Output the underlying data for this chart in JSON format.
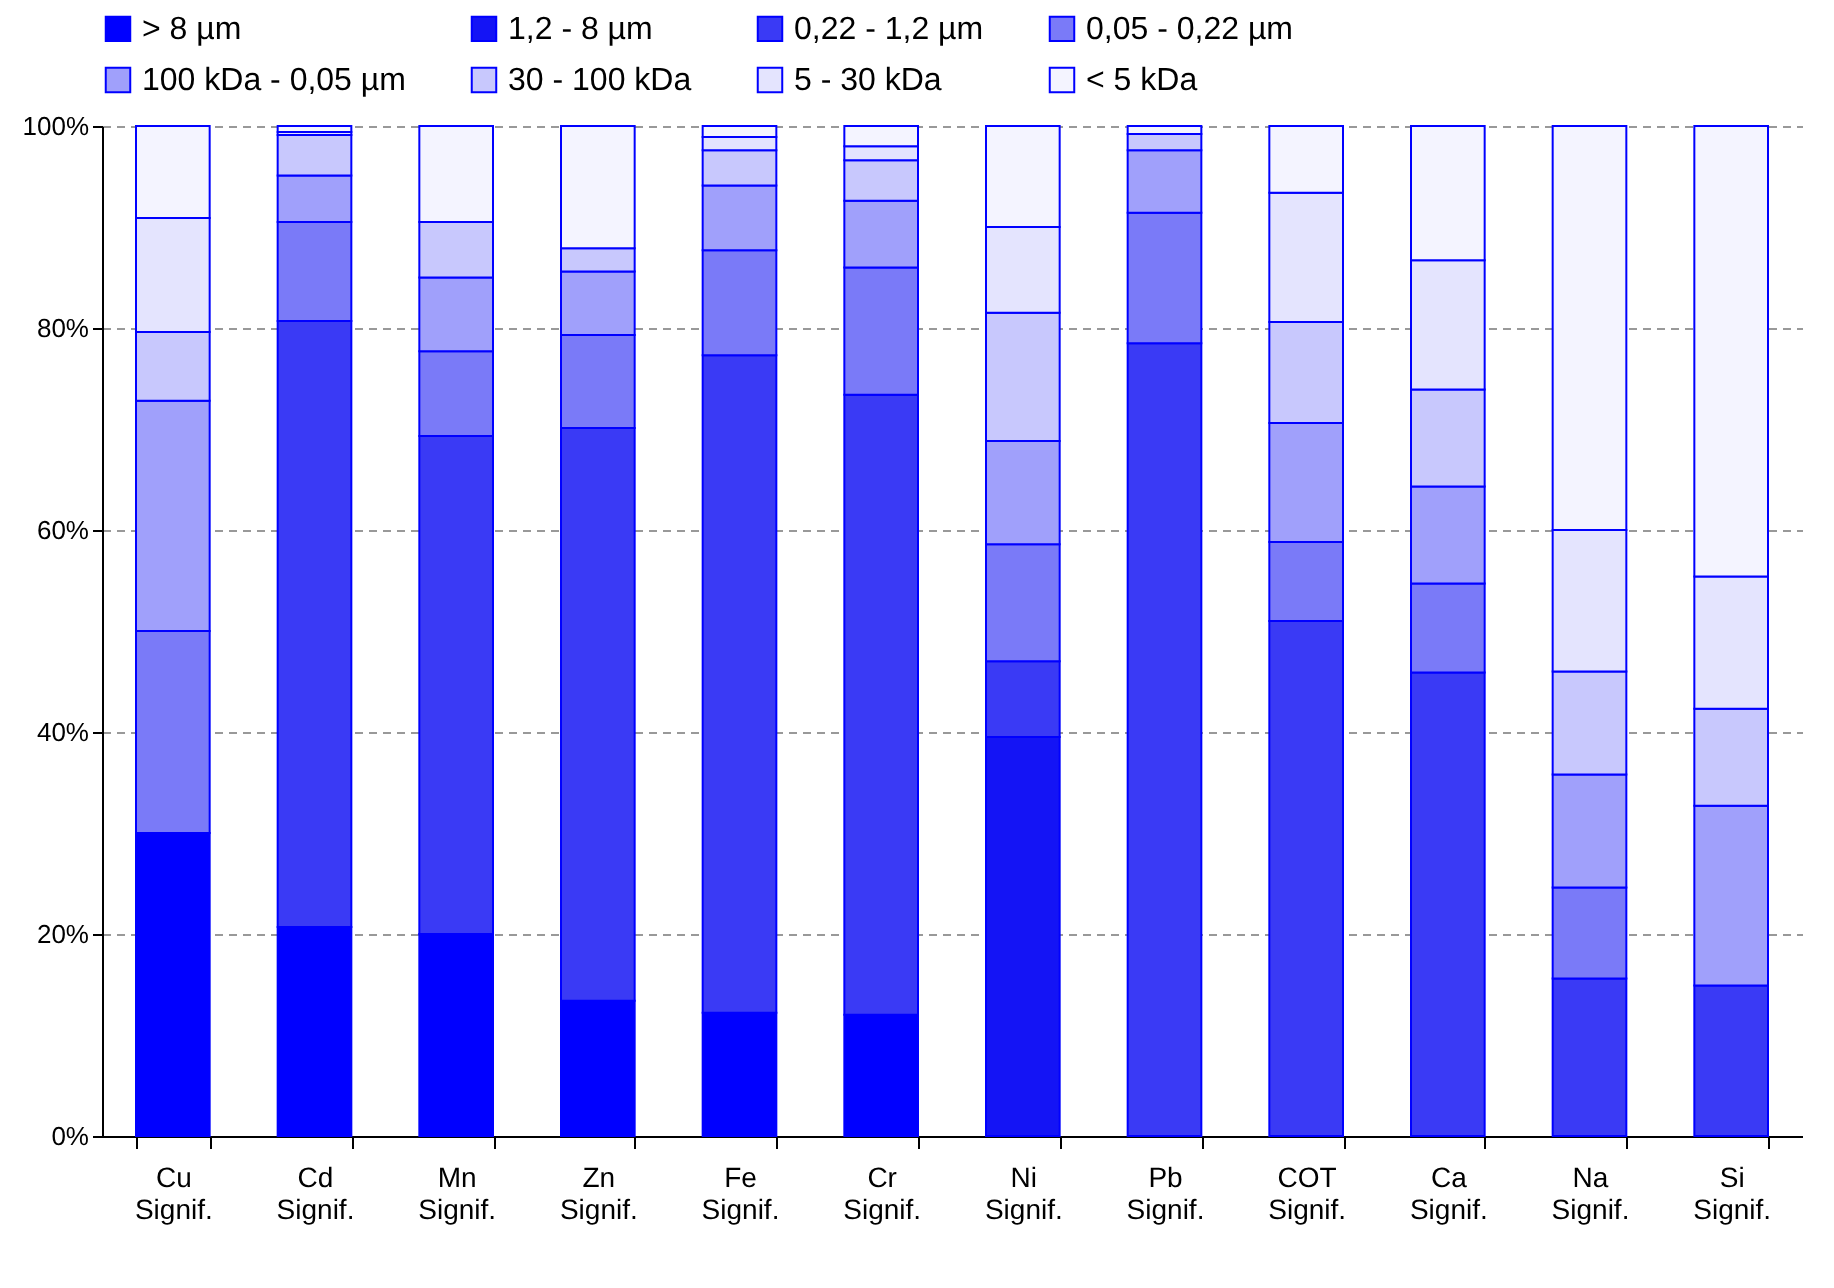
{
  "chart_data": {
    "type": "bar",
    "stacked": true,
    "categories": [
      "Cu Signif.",
      "Cd Signif.",
      "Mn Signif.",
      "Zn Signif.",
      "Fe Signif.",
      "Cr Signif.",
      "Ni Signif.",
      "Pb Signif.",
      "COT Signif.",
      "Ca Signif.",
      "Na Signif.",
      "Si Signif."
    ],
    "series": [
      {
        "name": "> 8 µm",
        "color": "#0000ff",
        "values": [
          30,
          20.7,
          20,
          13.4,
          12.2,
          12,
          0,
          0,
          0,
          0,
          0,
          0
        ]
      },
      {
        "name": "1,2 - 8 µm",
        "color": "#1414f5",
        "values": [
          0,
          0,
          0,
          0,
          0,
          0,
          39.5,
          0,
          0,
          0,
          0,
          0
        ]
      },
      {
        "name": "0,22 - 1,2 µm",
        "color": "#3a3af5",
        "values": [
          0,
          60,
          49.3,
          56.7,
          65.1,
          61.4,
          7.5,
          78.5,
          51,
          45.9,
          15.6,
          14.9
        ]
      },
      {
        "name": "0,05 - 0,22 µm",
        "color": "#7a7af8",
        "values": [
          20,
          9.8,
          8.4,
          9.2,
          10.4,
          12.6,
          11.6,
          12.9,
          7.8,
          8.8,
          9,
          0
        ]
      },
      {
        "name": "100 kDa - 0,05 µm",
        "color": "#a0a0fb",
        "values": [
          22.8,
          4.6,
          7.3,
          6.3,
          6.4,
          6.6,
          10.2,
          6.2,
          11.8,
          9.6,
          11.2,
          17.8
        ]
      },
      {
        "name": "30 - 100 kDa",
        "color": "#c8c8fd",
        "values": [
          6.8,
          4,
          5.5,
          2.3,
          3.5,
          4,
          12.7,
          1.6,
          10,
          9.6,
          10.2,
          9.6
        ]
      },
      {
        "name": "5 - 30 kDa",
        "color": "#e4e4fe",
        "values": [
          11.3,
          0.3,
          0,
          0,
          1.3,
          1.4,
          8.5,
          0,
          12.8,
          12.8,
          14,
          13.1
        ]
      },
      {
        "name": "< 5 kDa",
        "color": "#f4f4ff",
        "values": [
          9.1,
          0.6,
          9.5,
          12.1,
          1.1,
          2,
          10,
          0.8,
          6.6,
          13.3,
          40,
          44.6
        ]
      }
    ],
    "ylim": [
      0,
      100
    ],
    "yticks": [
      {
        "value": 0,
        "label": "0%"
      },
      {
        "value": 20,
        "label": "20%"
      },
      {
        "value": 40,
        "label": "40%"
      },
      {
        "value": 60,
        "label": "60%"
      },
      {
        "value": 80,
        "label": "80%"
      },
      {
        "value": 100,
        "label": "100%"
      }
    ],
    "grid": "y",
    "legend": "top"
  }
}
